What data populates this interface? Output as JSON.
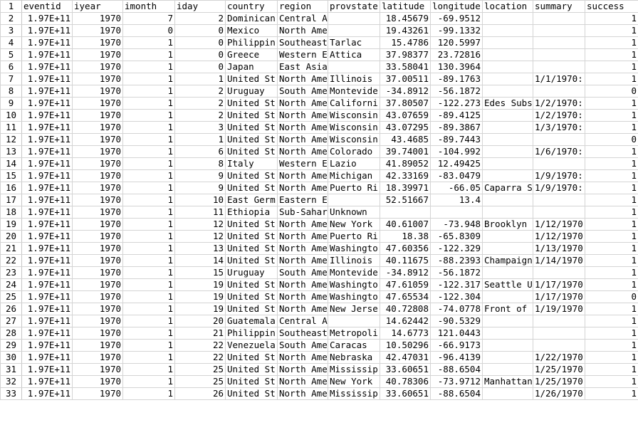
{
  "sheet": {
    "columns": [
      "eventid",
      "iyear",
      "imonth",
      "iday",
      "country",
      "region",
      "provstate",
      "latitude",
      "longitude",
      "location",
      "summary",
      "success"
    ],
    "rows": [
      [
        "1.97E+11",
        "1970",
        "7",
        "2",
        "Dominican",
        "Central America &",
        "",
        "18.45679",
        "-69.9512",
        "",
        "",
        "1"
      ],
      [
        "1.97E+11",
        "1970",
        "0",
        "0",
        "Mexico",
        "North America",
        "",
        "19.43261",
        "-99.1332",
        "",
        "",
        "1"
      ],
      [
        "1.97E+11",
        "1970",
        "1",
        "0",
        "Philippin",
        "Southeast",
        "Tarlac",
        "15.4786",
        "120.5997",
        "",
        "",
        "1"
      ],
      [
        "1.97E+11",
        "1970",
        "1",
        "0",
        "Greece",
        "Western E",
        "Attica",
        "37.98377",
        "23.72816",
        "",
        "",
        "1"
      ],
      [
        "1.97E+11",
        "1970",
        "1",
        "0",
        "Japan",
        "East Asia",
        "",
        "33.58041",
        "130.3964",
        "",
        "",
        "1"
      ],
      [
        "1.97E+11",
        "1970",
        "1",
        "1",
        "United St",
        "North Ame",
        "Illinois",
        "37.00511",
        "-89.1763",
        "",
        "1/1/1970:",
        "1"
      ],
      [
        "1.97E+11",
        "1970",
        "1",
        "2",
        "Uruguay",
        "South Ame",
        "Montevide",
        "-34.8912",
        "-56.1872",
        "",
        "",
        "0"
      ],
      [
        "1.97E+11",
        "1970",
        "1",
        "2",
        "United St",
        "North Ame",
        "Californi",
        "37.80507",
        "-122.273",
        "Edes Subs",
        "1/2/1970:",
        "1"
      ],
      [
        "1.97E+11",
        "1970",
        "1",
        "2",
        "United St",
        "North Ame",
        "Wisconsin",
        "43.07659",
        "-89.4125",
        "",
        "1/2/1970:",
        "1"
      ],
      [
        "1.97E+11",
        "1970",
        "1",
        "3",
        "United St",
        "North Ame",
        "Wisconsin",
        "43.07295",
        "-89.3867",
        "",
        "1/3/1970:",
        "1"
      ],
      [
        "1.97E+11",
        "1970",
        "1",
        "1",
        "United St",
        "North Ame",
        "Wisconsin",
        "43.4685",
        "-89.7443",
        "",
        "",
        "0"
      ],
      [
        "1.97E+11",
        "1970",
        "1",
        "6",
        "United St",
        "North Ame",
        "Colorado",
        "39.74001",
        "-104.992",
        "",
        "1/6/1970:",
        "1"
      ],
      [
        "1.97E+11",
        "1970",
        "1",
        "8",
        "Italy",
        "Western E",
        "Lazio",
        "41.89052",
        "12.49425",
        "",
        "",
        "1"
      ],
      [
        "1.97E+11",
        "1970",
        "1",
        "9",
        "United St",
        "North Ame",
        "Michigan",
        "42.33169",
        "-83.0479",
        "",
        "1/9/1970:",
        "1"
      ],
      [
        "1.97E+11",
        "1970",
        "1",
        "9",
        "United St",
        "North Ame",
        "Puerto Ri",
        "18.39971",
        "-66.05",
        "Caparra S",
        "1/9/1970:",
        "1"
      ],
      [
        "1.97E+11",
        "1970",
        "1",
        "10",
        "East Germ",
        "Eastern Europe",
        "",
        "52.51667",
        "13.4",
        "",
        "",
        "1"
      ],
      [
        "1.97E+11",
        "1970",
        "1",
        "11",
        "Ethiopia",
        "Sub-Sahar",
        "Unknown",
        "",
        "",
        "",
        "",
        "1"
      ],
      [
        "1.97E+11",
        "1970",
        "1",
        "12",
        "United St",
        "North Ame",
        "New York",
        "40.61007",
        "-73.948",
        "Brooklyn",
        "1/12/1970",
        "1"
      ],
      [
        "1.97E+11",
        "1970",
        "1",
        "12",
        "United St",
        "North Ame",
        "Puerto Ri",
        "18.38",
        "-65.8309",
        "",
        "1/12/1970",
        "1"
      ],
      [
        "1.97E+11",
        "1970",
        "1",
        "13",
        "United St",
        "North Ame",
        "Washingto",
        "47.60356",
        "-122.329",
        "",
        "1/13/1970",
        "1"
      ],
      [
        "1.97E+11",
        "1970",
        "1",
        "14",
        "United St",
        "North Ame",
        "Illinois",
        "40.11675",
        "-88.2393",
        "Champaign",
        "1/14/1970",
        "1"
      ],
      [
        "1.97E+11",
        "1970",
        "1",
        "15",
        "Uruguay",
        "South Ame",
        "Montevide",
        "-34.8912",
        "-56.1872",
        "",
        "",
        "1"
      ],
      [
        "1.97E+11",
        "1970",
        "1",
        "19",
        "United St",
        "North Ame",
        "Washingto",
        "47.61059",
        "-122.317",
        "Seattle U",
        "1/17/1970",
        "1"
      ],
      [
        "1.97E+11",
        "1970",
        "1",
        "19",
        "United St",
        "North Ame",
        "Washingto",
        "47.65534",
        "-122.304",
        "",
        "1/17/1970",
        "0"
      ],
      [
        "1.97E+11",
        "1970",
        "1",
        "19",
        "United St",
        "North Ame",
        "New Jerse",
        "40.72808",
        "-74.0778",
        "Front of",
        "1/19/1970",
        "1"
      ],
      [
        "1.97E+11",
        "1970",
        "1",
        "20",
        "Guatemala",
        "Central America &",
        "",
        "14.62442",
        "-90.5329",
        "",
        "",
        "1"
      ],
      [
        "1.97E+11",
        "1970",
        "1",
        "21",
        "Philippin",
        "Southeast",
        "Metropoli",
        "14.6773",
        "121.0443",
        "",
        "",
        "1"
      ],
      [
        "1.97E+11",
        "1970",
        "1",
        "22",
        "Venezuela",
        "South Ame",
        "Caracas",
        "10.50296",
        "-66.9173",
        "",
        "",
        "1"
      ],
      [
        "1.97E+11",
        "1970",
        "1",
        "22",
        "United St",
        "North Ame",
        "Nebraska",
        "42.47031",
        "-96.4139",
        "",
        "1/22/1970",
        "1"
      ],
      [
        "1.97E+11",
        "1970",
        "1",
        "25",
        "United St",
        "North Ame",
        "Mississip",
        "33.60651",
        "-88.6504",
        "",
        "1/25/1970",
        "1"
      ],
      [
        "1.97E+11",
        "1970",
        "1",
        "25",
        "United St",
        "North Ame",
        "New York",
        "40.78306",
        "-73.9712",
        "Manhattan",
        "1/25/1970",
        "1"
      ],
      [
        "1.97E+11",
        "1970",
        "1",
        "26",
        "United St",
        "North Ame",
        "Mississip",
        "33.60651",
        "-88.6504",
        "",
        "1/26/1970",
        "1"
      ]
    ]
  }
}
